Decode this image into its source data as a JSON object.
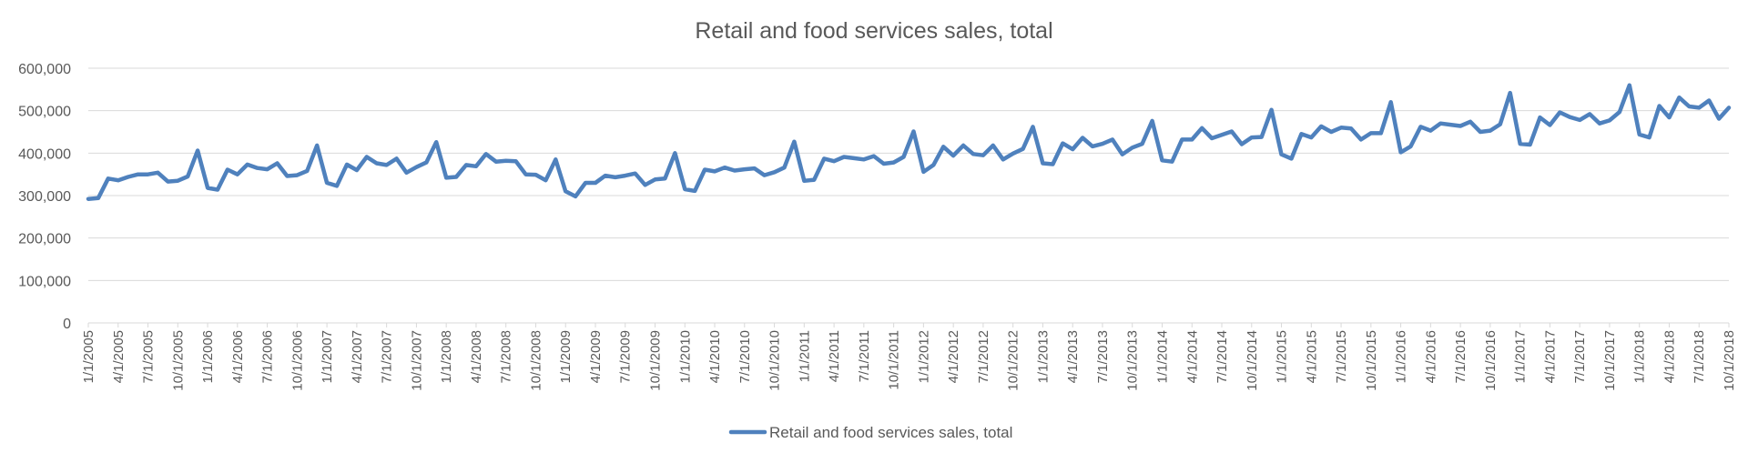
{
  "colors": {
    "series": "#4f81bd",
    "grid": "#d9d9d9",
    "text": "#595959"
  },
  "chart_data": {
    "type": "line",
    "title": "Retail and food services sales, total",
    "xlabel": "",
    "ylabel": "",
    "ylim": [
      0,
      600000
    ],
    "y_ticks": [
      0,
      100000,
      200000,
      300000,
      400000,
      500000,
      600000
    ],
    "y_tick_labels": [
      "0",
      "100,000",
      "200,000",
      "300,000",
      "400,000",
      "500,000",
      "600,000"
    ],
    "x_tick_labels": [
      "1/1/2005",
      "4/1/2005",
      "7/1/2005",
      "10/1/2005",
      "1/1/2006",
      "4/1/2006",
      "7/1/2006",
      "10/1/2006",
      "1/1/2007",
      "4/1/2007",
      "7/1/2007",
      "10/1/2007",
      "1/1/2008",
      "4/1/2008",
      "7/1/2008",
      "10/1/2008",
      "1/1/2009",
      "4/1/2009",
      "7/1/2009",
      "10/1/2009",
      "1/1/2010",
      "4/1/2010",
      "7/1/2010",
      "10/1/2010",
      "1/1/2011",
      "4/1/2011",
      "7/1/2011",
      "10/1/2011",
      "1/1/2012",
      "4/1/2012",
      "7/1/2012",
      "10/1/2012",
      "1/1/2013",
      "4/1/2013",
      "7/1/2013",
      "10/1/2013",
      "1/1/2014",
      "4/1/2014",
      "7/1/2014",
      "10/1/2014",
      "1/1/2015",
      "4/1/2015",
      "7/1/2015",
      "10/1/2015",
      "1/1/2016",
      "4/1/2016",
      "7/1/2016",
      "10/1/2016",
      "1/1/2017",
      "4/1/2017",
      "7/1/2017",
      "10/1/2017",
      "1/1/2018",
      "4/1/2018",
      "7/1/2018",
      "10/1/2018"
    ],
    "grid": true,
    "legend": "bottom",
    "series": [
      {
        "name": "Retail and food services sales, total",
        "x_start": "1/1/2005",
        "x_step": "monthly",
        "values": [
          292000,
          294000,
          340000,
          336000,
          344000,
          350000,
          350000,
          354000,
          333000,
          335000,
          345000,
          406000,
          318000,
          314000,
          361000,
          350000,
          373000,
          365000,
          362000,
          376000,
          346000,
          348000,
          358000,
          418000,
          330000,
          323000,
          373000,
          360000,
          391000,
          376000,
          372000,
          387000,
          354000,
          367000,
          378000,
          426000,
          342000,
          344000,
          372000,
          369000,
          398000,
          380000,
          382000,
          381000,
          350000,
          349000,
          336000,
          385000,
          310000,
          298000,
          330000,
          330000,
          347000,
          343000,
          347000,
          352000,
          325000,
          338000,
          340000,
          400000,
          315000,
          311000,
          361000,
          357000,
          366000,
          359000,
          362000,
          364000,
          348000,
          355000,
          366000,
          427000,
          335000,
          337000,
          387000,
          381000,
          391000,
          388000,
          385000,
          393000,
          375000,
          378000,
          391000,
          451000,
          356000,
          372000,
          415000,
          394000,
          418000,
          398000,
          395000,
          418000,
          385000,
          399000,
          410000,
          462000,
          376000,
          374000,
          423000,
          409000,
          436000,
          416000,
          422000,
          432000,
          397000,
          413000,
          422000,
          476000,
          383000,
          380000,
          432000,
          432000,
          459000,
          435000,
          443000,
          451000,
          421000,
          437000,
          438000,
          502000,
          397000,
          387000,
          445000,
          437000,
          463000,
          450000,
          460000,
          458000,
          432000,
          447000,
          447000,
          520000,
          402000,
          416000,
          462000,
          453000,
          470000,
          467000,
          464000,
          474000,
          450000,
          453000,
          468000,
          542000,
          422000,
          420000,
          484000,
          466000,
          496000,
          485000,
          478000,
          492000,
          470000,
          477000,
          497000,
          560000,
          444000,
          437000,
          511000,
          484000,
          531000,
          510000,
          507000,
          524000,
          481000,
          507000
        ]
      }
    ]
  }
}
